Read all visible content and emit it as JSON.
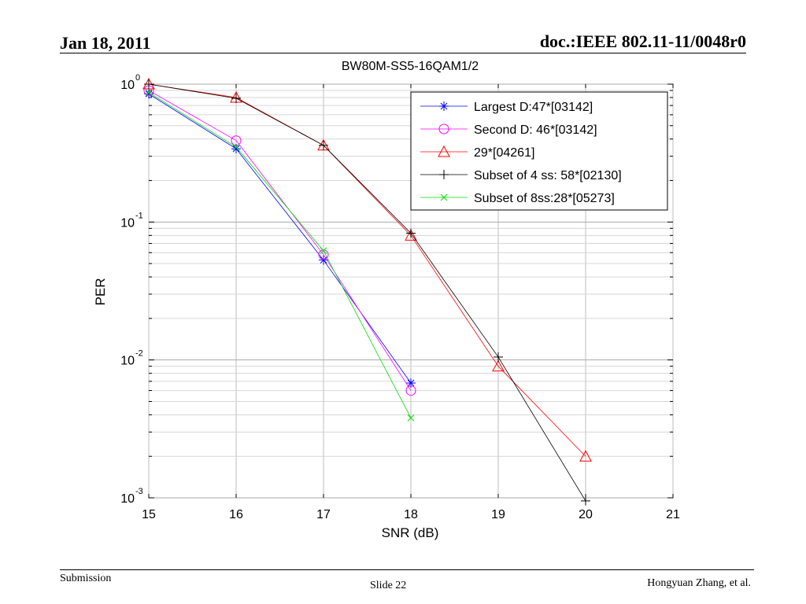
{
  "header": {
    "date": "Jan 18, 2011",
    "doc_id": "doc.:IEEE 802.11-11/0048r0"
  },
  "footer": {
    "left": "Submission",
    "center": "Slide 22",
    "right": "Hongyuan Zhang, et al."
  },
  "chart_data": {
    "type": "line",
    "title": "BW80M-SS5-16QAM1/2",
    "xlabel": "SNR (dB)",
    "ylabel": "PER",
    "yscale": "log",
    "xlim": [
      15,
      21
    ],
    "ylim": [
      0.001,
      1
    ],
    "x_ticks": [
      "15",
      "16",
      "17",
      "18",
      "19",
      "20",
      "21"
    ],
    "y_ticks": [
      {
        "base": "10",
        "exp": "0"
      },
      {
        "base": "10",
        "exp": "-1"
      },
      {
        "base": "10",
        "exp": "-2"
      },
      {
        "base": "10",
        "exp": "-3"
      }
    ],
    "grid": true,
    "legend_position": "top-right",
    "series": [
      {
        "name": "Largest D:47*[03142]",
        "color": "#0000ff",
        "marker": "star",
        "x": [
          15,
          16,
          17,
          18
        ],
        "y": [
          0.85,
          0.34,
          0.053,
          0.0068
        ]
      },
      {
        "name": "Second D: 46*[03142]",
        "color": "#ff00ff",
        "marker": "circle",
        "x": [
          15,
          16,
          17,
          18
        ],
        "y": [
          0.9,
          0.39,
          0.058,
          0.006
        ]
      },
      {
        "name": "29*[04261]",
        "color": "#ff0000",
        "marker": "triangle",
        "x": [
          15,
          16,
          17,
          18,
          19,
          20
        ],
        "y": [
          1.0,
          0.8,
          0.36,
          0.08,
          0.009,
          0.002
        ]
      },
      {
        "name": "Subset of 4 ss: 58*[02130]",
        "color": "#000000",
        "marker": "plus",
        "x": [
          15,
          16,
          17,
          18,
          19,
          20
        ],
        "y": [
          1.0,
          0.79,
          0.36,
          0.083,
          0.0105,
          0.00095
        ]
      },
      {
        "name": "Subset of 8ss:28*[05273]",
        "color": "#00dd00",
        "marker": "x",
        "x": [
          15,
          16,
          17,
          18
        ],
        "y": [
          0.87,
          0.35,
          0.062,
          0.0038
        ]
      }
    ]
  }
}
